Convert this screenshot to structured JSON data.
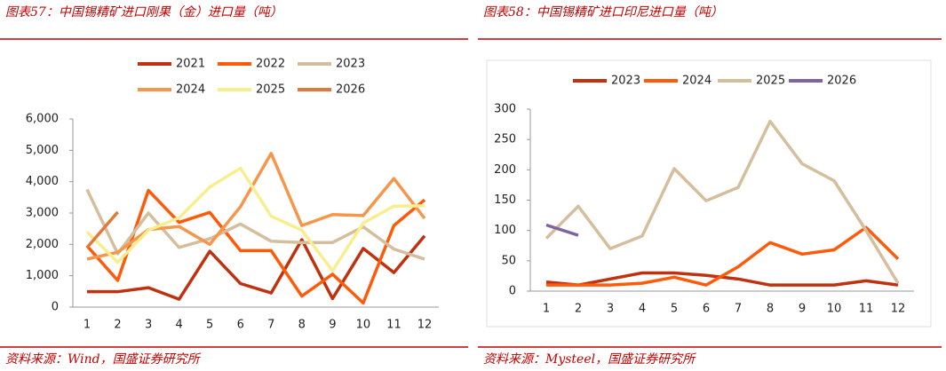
{
  "chart_data": [
    {
      "type": "line",
      "title": "图表57：中国锡精矿进口刚果（金）进口量（吨）",
      "source": "资料来源：Wind，国盛证券研究所",
      "categories": [
        "1",
        "2",
        "3",
        "4",
        "5",
        "6",
        "7",
        "8",
        "9",
        "10",
        "11",
        "12"
      ],
      "ylim": [
        0,
        6000
      ],
      "yticks": [
        0,
        {
          "value": 1000,
          "label": "1,000"
        },
        {
          "value": 2000,
          "label": "2,000"
        },
        {
          "value": 3000,
          "label": "3,000"
        },
        {
          "value": 4000,
          "label": "4,000"
        },
        {
          "value": 5000,
          "label": "5,000"
        },
        {
          "value": 6000,
          "label": "6,000"
        }
      ],
      "series": [
        {
          "name": "2021",
          "color": "#C0320F",
          "values": [
            490,
            490,
            620,
            250,
            1780,
            750,
            450,
            2150,
            270,
            1870,
            1100,
            2270
          ]
        },
        {
          "name": "2022",
          "color": "#FF5A0A",
          "values": [
            1950,
            850,
            3720,
            2700,
            3020,
            1800,
            1800,
            350,
            1050,
            130,
            2600,
            3420
          ]
        },
        {
          "name": "2023",
          "color": "#D5BE9C",
          "values": [
            3750,
            1700,
            3000,
            1900,
            2180,
            2650,
            2100,
            2060,
            2060,
            2560,
            1850,
            1530
          ]
        },
        {
          "name": "2024",
          "color": "#F7964A",
          "values": [
            1530,
            1750,
            2470,
            2570,
            2000,
            3200,
            4900,
            2600,
            2950,
            2920,
            4100,
            2830
          ]
        },
        {
          "name": "2025",
          "color": "#F9EE8E",
          "values": [
            2400,
            1430,
            2450,
            2850,
            3830,
            4430,
            2900,
            2450,
            1160,
            2680,
            3220,
            3230
          ]
        },
        {
          "name": "2026",
          "color": "#E07A3A",
          "values": [
            1900,
            3030,
            null,
            null,
            null,
            null,
            null,
            null,
            null,
            null,
            null,
            null
          ]
        }
      ]
    },
    {
      "type": "line",
      "title": "图表58：中国锡精矿进口印尼进口量（吨）",
      "source": "资料来源：Mysteel，国盛证券研究所",
      "categories": [
        "1",
        "2",
        "3",
        "4",
        "5",
        "6",
        "7",
        "8",
        "9",
        "10",
        "11",
        "12"
      ],
      "ylim": [
        0,
        300
      ],
      "yticks": [
        0,
        50,
        100,
        150,
        200,
        250,
        300
      ],
      "series": [
        {
          "name": "2023",
          "color": "#C0320F",
          "values": [
            15,
            10,
            20,
            30,
            30,
            26,
            20,
            10,
            10,
            10,
            17,
            10
          ]
        },
        {
          "name": "2024",
          "color": "#FF5A0A",
          "values": [
            10,
            10,
            10,
            13,
            23,
            10,
            40,
            80,
            61,
            68,
            105,
            53
          ]
        },
        {
          "name": "2025",
          "color": "#D5BE9C",
          "values": [
            87,
            140,
            70,
            91,
            202,
            149,
            171,
            280,
            210,
            182,
            100,
            13
          ]
        },
        {
          "name": "2026",
          "color": "#8064A2",
          "values": [
            109,
            92,
            null,
            null,
            null,
            null,
            null,
            null,
            null,
            null,
            null,
            null
          ]
        }
      ]
    }
  ]
}
